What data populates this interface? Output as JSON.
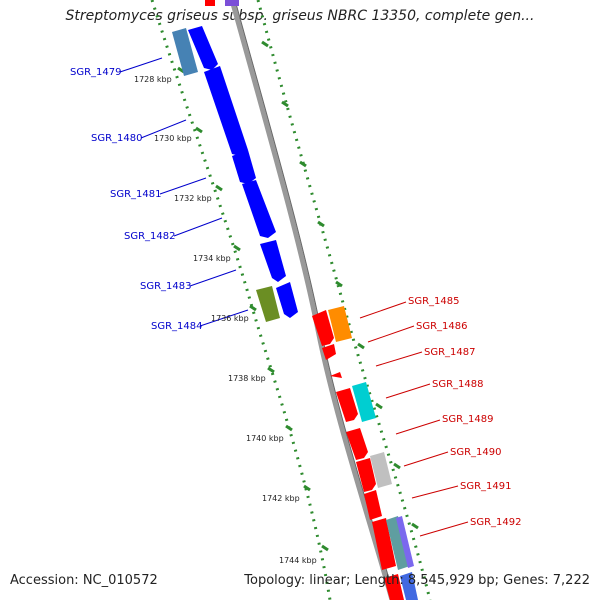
{
  "title": "Streptomyces griseus subsp. griseus NBRC 13350, complete gen...",
  "footer": {
    "accession": "Accession: NC_010572",
    "summary": "Topology: linear; Length: 8,545,929 bp; Genes: 7,222"
  },
  "kbp_ticks": [
    "1728 kbp",
    "1730 kbp",
    "1732 kbp",
    "1734 kbp",
    "1736 kbp",
    "1738 kbp",
    "1740 kbp",
    "1742 kbp",
    "1744 kbp"
  ],
  "genes_left": [
    "SGR_1479",
    "SGR_1480",
    "SGR_1481",
    "SGR_1482",
    "SGR_1483",
    "SGR_1484"
  ],
  "genes_right": [
    "SGR_1485",
    "SGR_1486",
    "SGR_1487",
    "SGR_1488",
    "SGR_1489",
    "SGR_1490",
    "SGR_1491",
    "SGR_1492"
  ],
  "colors": {
    "forward_strand": "#0000ff",
    "reverse_strand": "#ff0000",
    "left_label": "#0000cc",
    "right_label": "#cc0000",
    "backbone": "#888888",
    "tick_dots": "#2e8b2e"
  }
}
